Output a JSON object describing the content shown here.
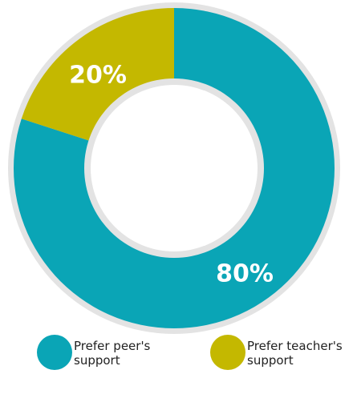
{
  "chart_data": {
    "type": "donut",
    "categories": [
      "Prefer peer's support",
      "Prefer teacher's support"
    ],
    "values": [
      80,
      20
    ],
    "value_labels": [
      "80%",
      "20%"
    ],
    "colors": [
      "#0aa5b6",
      "#c4b800"
    ]
  }
}
